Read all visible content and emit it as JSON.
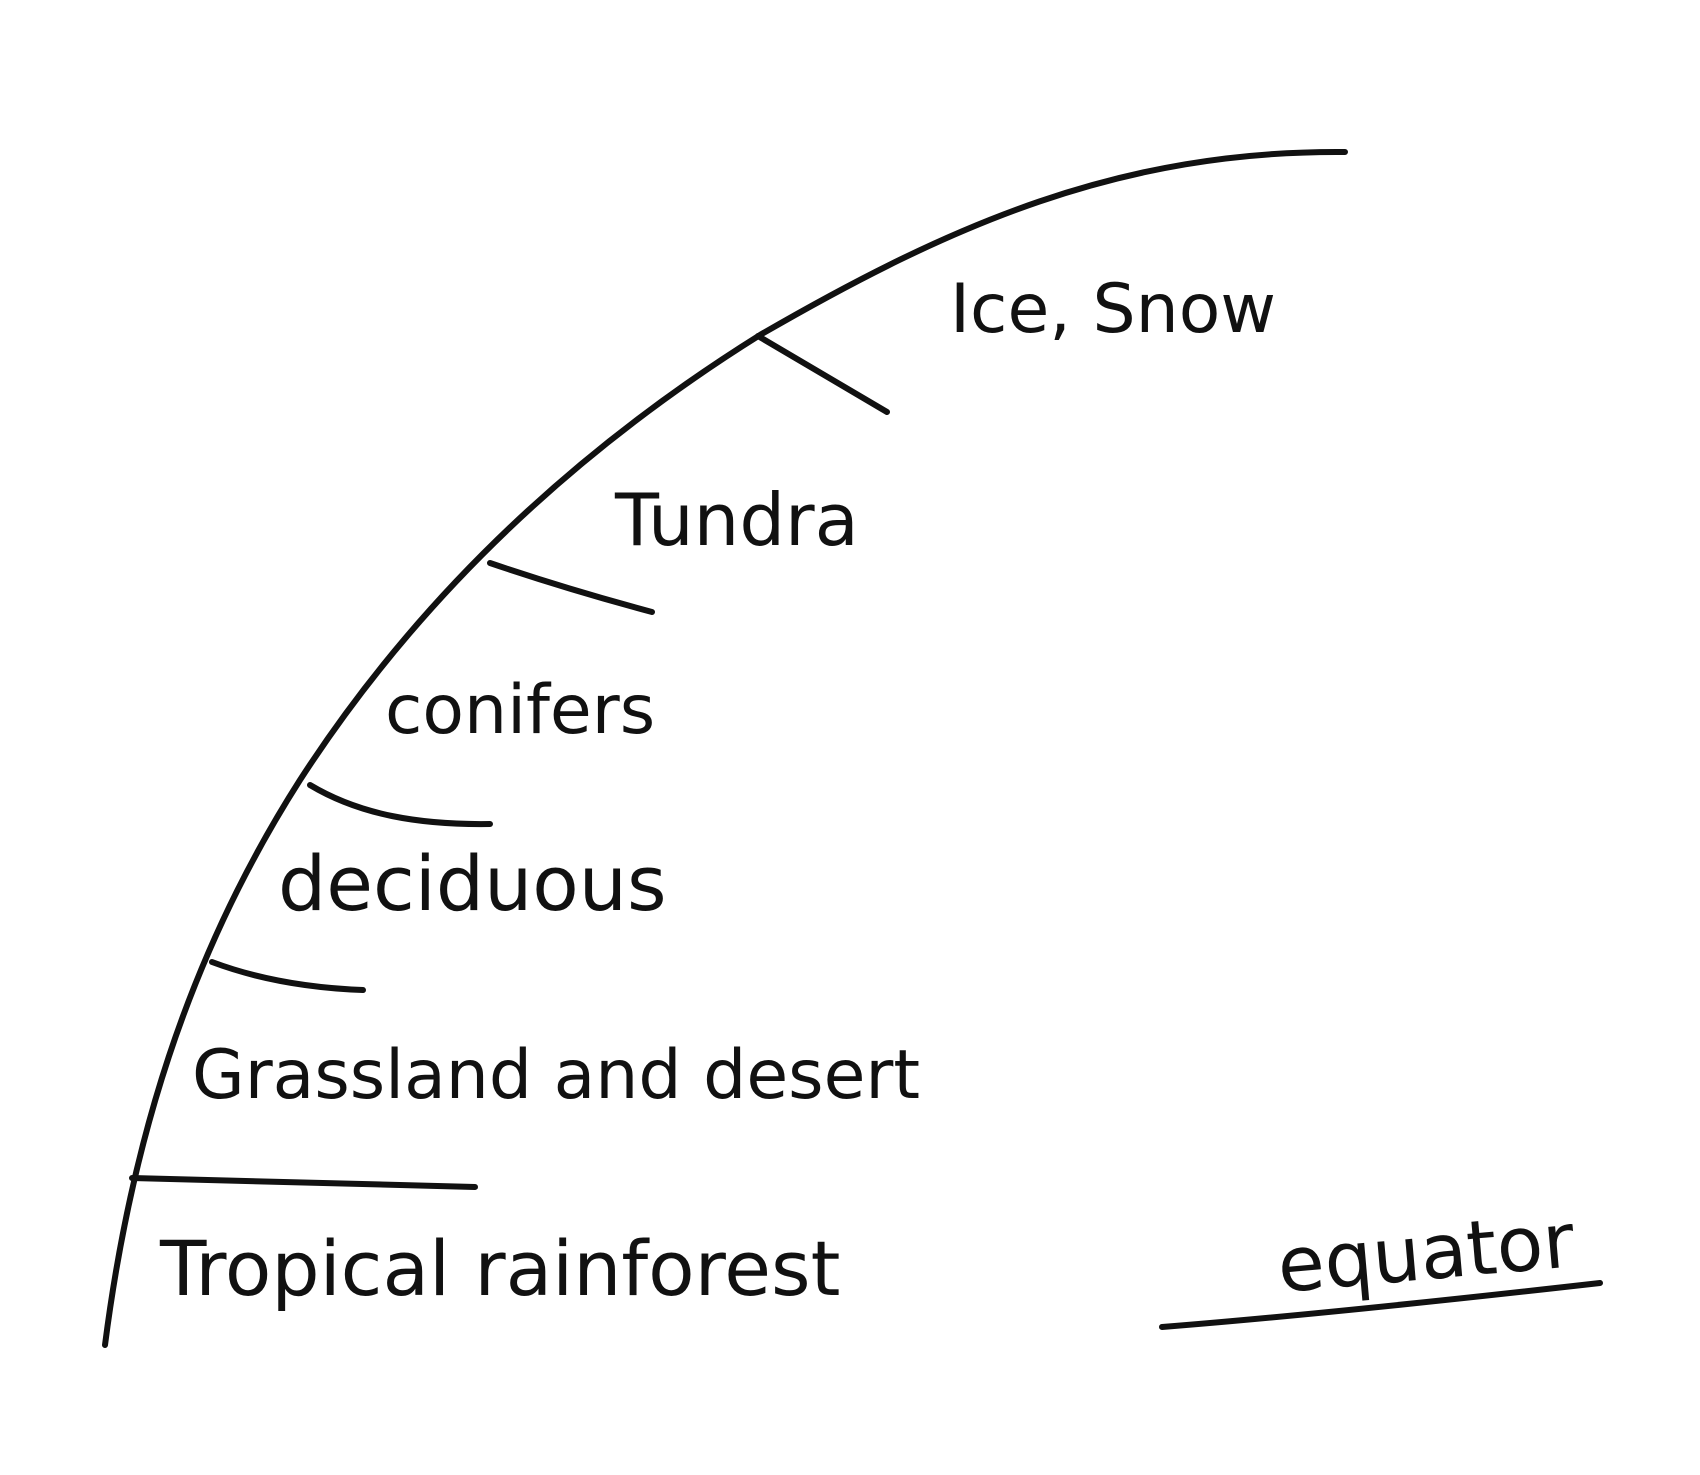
{
  "colors": {
    "ink": "#111111",
    "paper": "#ffffff"
  },
  "zones": [
    {
      "label": "Ice, Snow"
    },
    {
      "label": "Tundra"
    },
    {
      "label": "conifers"
    },
    {
      "label": "deciduous"
    },
    {
      "label": "Grassland and desert"
    },
    {
      "label": "Tropical rainforest"
    }
  ],
  "equator_label": "equator"
}
